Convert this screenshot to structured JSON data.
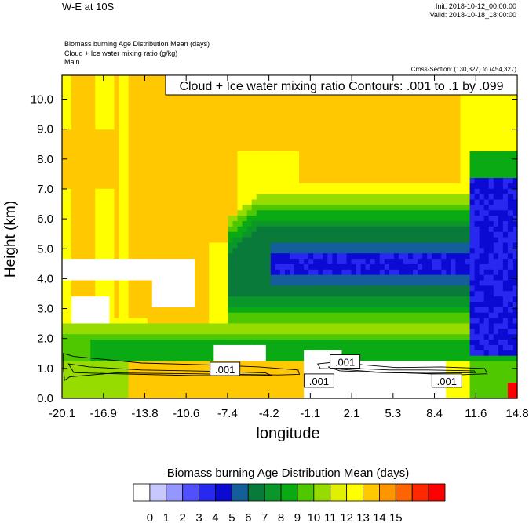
{
  "header": {
    "title": "W-E at 10S",
    "init": "Init: 2018-10-12_00:00:00",
    "valid": "Valid: 2018-10-18_18:00:00",
    "fields": [
      "Biomass burning Age Distribution Mean   (days)",
      "Cloud + Ice water mixing ratio   (g/kg)",
      "Main"
    ],
    "cross_section": "Cross-Section: (130,327) to (454,327)"
  },
  "chart_data": {
    "type": "heatmap",
    "xlabel": "longitude",
    "ylabel": "Height (km)",
    "contour_label": "Cloud + Ice water mixing ratio Contours: .001 to .1 by .099",
    "x_ticks": [
      "-20.1",
      "-16.9",
      "-13.8",
      "-10.6",
      "-7.4",
      "-4.2",
      "-1.1",
      "2.1",
      "5.3",
      "8.4",
      "11.6",
      "14.8"
    ],
    "y_ticks": [
      "0.0",
      "1.0",
      "2.0",
      "3.0",
      "4.0",
      "5.0",
      "6.0",
      "7.0",
      "8.0",
      "9.0",
      "10.0"
    ],
    "xlim": [
      -20.1,
      14.8
    ],
    "ylim": [
      0.0,
      10.8
    ],
    "contour_labels": [
      {
        "text": ".001",
        "x": -7.6,
        "y": 0.97
      },
      {
        "text": ".001",
        "x": -0.4,
        "y": 0.58
      },
      {
        "text": ".001",
        "x": 1.6,
        "y": 1.22
      },
      {
        "text": ".001",
        "x": 9.4,
        "y": 0.58
      }
    ],
    "colorbar": {
      "title": "Biomass burning Age Distribution Mean  (days)",
      "labels": [
        "0",
        "1",
        "2",
        "3",
        "4",
        "5",
        "6",
        "7",
        "8",
        "9",
        "10",
        "11",
        "12",
        "13",
        "14",
        "15"
      ],
      "colors": [
        "#ffffff",
        "#c8c8ff",
        "#9696ff",
        "#5050ff",
        "#2828f0",
        "#0a0ad2",
        "#145f9b",
        "#0a7a3a",
        "#0a9628",
        "#0aaa14",
        "#50c800",
        "#96dc00",
        "#e1f000",
        "#ffff00",
        "#ffc800",
        "#ff9600",
        "#ff6400",
        "#ff2800",
        "#ff0000"
      ]
    }
  }
}
